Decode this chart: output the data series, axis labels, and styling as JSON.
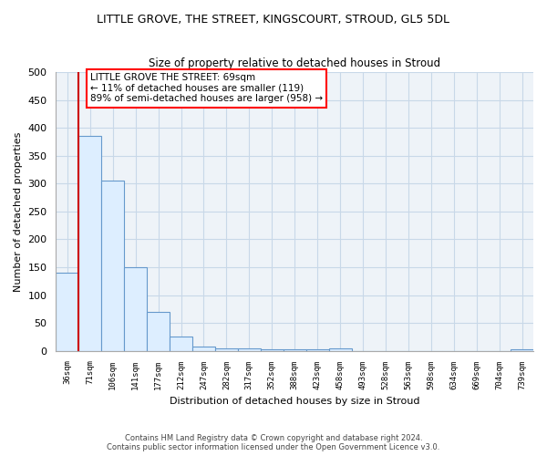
{
  "title": "LITTLE GROVE, THE STREET, KINGSCOURT, STROUD, GL5 5DL",
  "subtitle": "Size of property relative to detached houses in Stroud",
  "xlabel": "Distribution of detached houses by size in Stroud",
  "ylabel": "Number of detached properties",
  "bar_color_fill": "#ddeeff",
  "bar_color_edge": "#6699cc",
  "annotation_line_color": "#cc0000",
  "background_color": "#ffffff",
  "grid_color": "#c8d8e8",
  "bins": [
    "36sqm",
    "71sqm",
    "106sqm",
    "141sqm",
    "177sqm",
    "212sqm",
    "247sqm",
    "282sqm",
    "317sqm",
    "352sqm",
    "388sqm",
    "423sqm",
    "458sqm",
    "493sqm",
    "528sqm",
    "563sqm",
    "598sqm",
    "634sqm",
    "669sqm",
    "704sqm",
    "739sqm"
  ],
  "values": [
    140,
    385,
    305,
    150,
    70,
    25,
    8,
    5,
    5,
    3,
    2,
    2,
    5,
    0,
    0,
    0,
    0,
    0,
    0,
    0,
    3
  ],
  "ylim": [
    0,
    500
  ],
  "yticks": [
    0,
    50,
    100,
    150,
    200,
    250,
    300,
    350,
    400,
    450,
    500
  ],
  "property_label": "LITTLE GROVE THE STREET: 69sqm",
  "pct_smaller": 11,
  "n_smaller": 119,
  "pct_larger": 89,
  "n_larger": 958,
  "footer_line1": "Contains HM Land Registry data © Crown copyright and database right 2024.",
  "footer_line2": "Contains public sector information licensed under the Open Government Licence v3.0."
}
